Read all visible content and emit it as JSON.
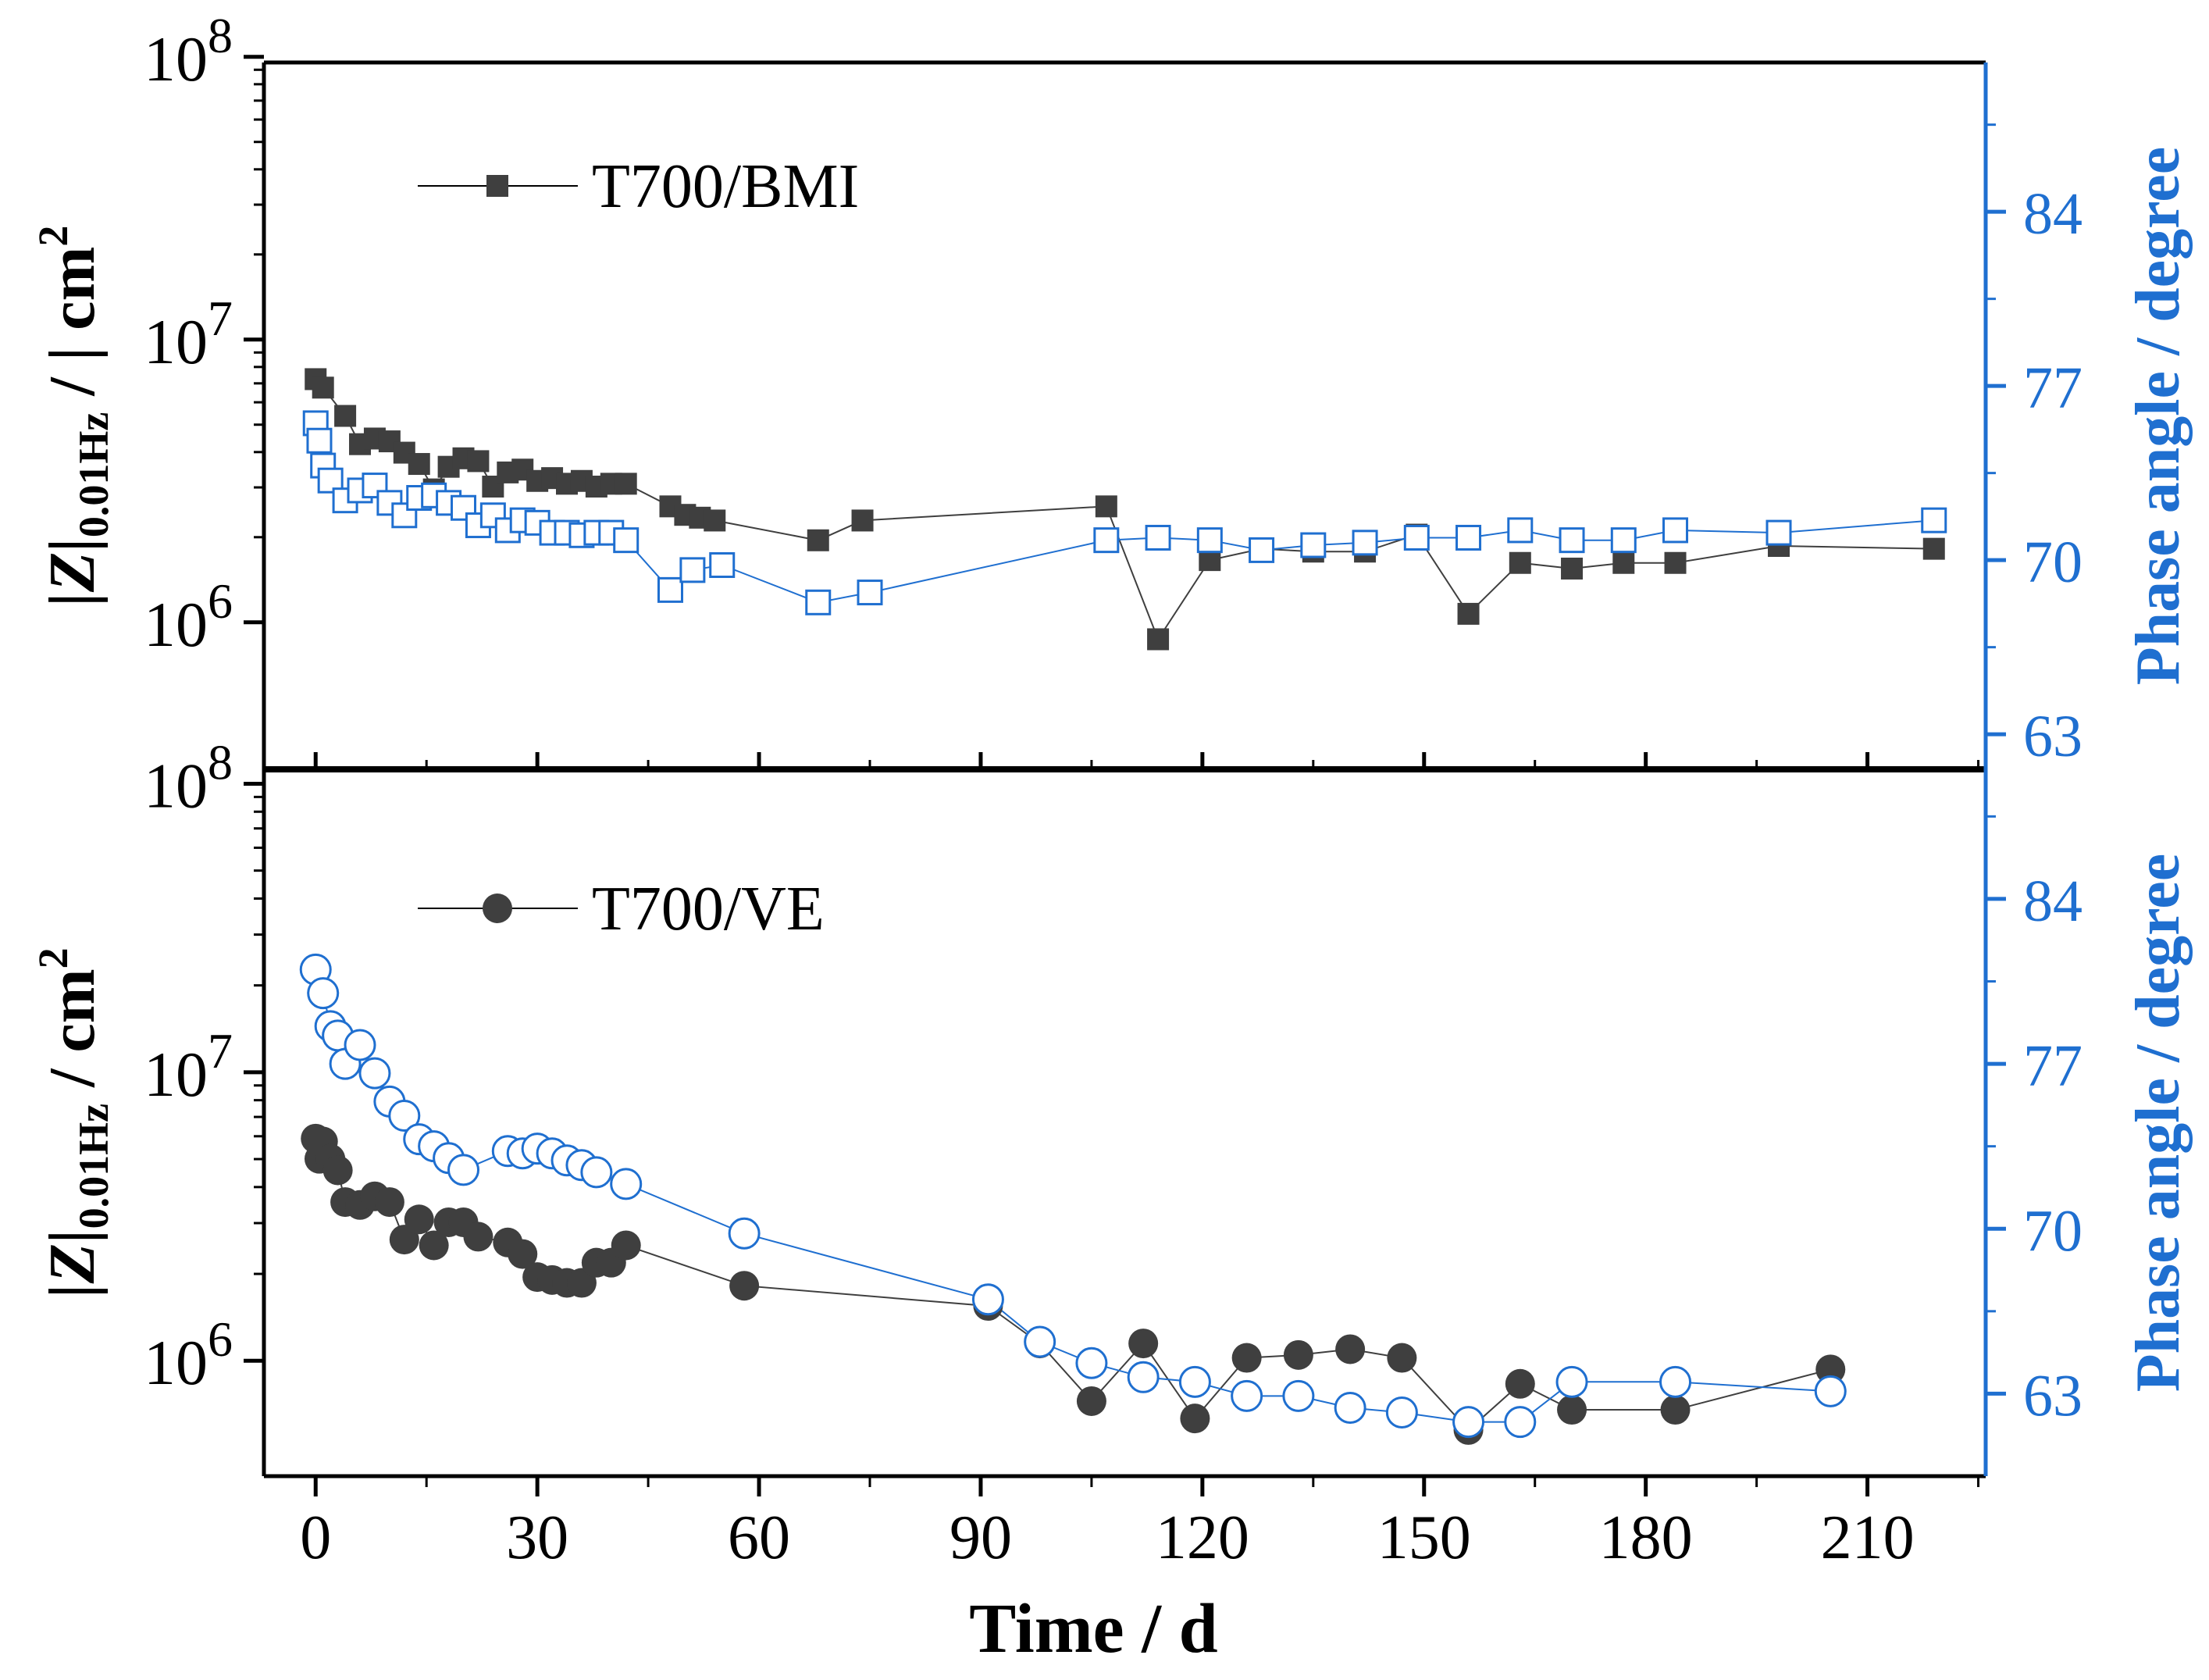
{
  "chart_data": [
    {
      "type": "scatter",
      "panel": "top",
      "left_axis_title": {
        "main": "|Z|",
        "sub": "0.01Hz",
        "tail": " /  |    cm",
        "sup": "2"
      },
      "right_axis_title": "Phase angle / degree",
      "left_ticks": [
        {
          "value": 6,
          "label": "10",
          "exp": "6"
        },
        {
          "value": 7,
          "label": "10",
          "exp": "7"
        },
        {
          "value": 8,
          "label": "10",
          "exp": "8"
        }
      ],
      "left_ylim": [
        5.48,
        7.98
      ],
      "right_ticks": [
        "63",
        "70",
        "77",
        "84"
      ],
      "right_ylim": [
        62,
        90
      ],
      "xlim": [
        -7,
        226
      ],
      "legend": {
        "label": "T700/BMI",
        "position": "top-left"
      },
      "colors": {
        "modulus": "#3f3f3f",
        "phase": "#1f6fd0"
      },
      "series": [
        {
          "name": "T700/BMI |Z|",
          "marker": "filled-square",
          "x": [
            0,
            1,
            4,
            6,
            8,
            10,
            12,
            14,
            16,
            18,
            20,
            22,
            24,
            26,
            28,
            30,
            32,
            34,
            36,
            38,
            40,
            42,
            48,
            50,
            52,
            54,
            68,
            74,
            107,
            114,
            121,
            128,
            135,
            142,
            149,
            156,
            163,
            170,
            177,
            184,
            198,
            219
          ],
          "y": [
            6.86,
            6.83,
            6.73,
            6.63,
            6.65,
            6.64,
            6.6,
            6.56,
            6.47,
            6.55,
            6.58,
            6.57,
            6.48,
            6.53,
            6.54,
            6.5,
            6.51,
            6.49,
            6.5,
            6.48,
            6.49,
            6.49,
            6.41,
            6.38,
            6.37,
            6.36,
            6.29,
            6.36,
            6.41,
            5.94,
            6.22,
            6.26,
            6.25,
            6.25,
            6.31,
            6.03,
            6.21,
            6.19,
            6.21,
            6.21,
            6.27,
            6.26
          ]
        },
        {
          "name": "T700/BMI phase",
          "marker": "open-square",
          "x": [
            0,
            0.5,
            1,
            2,
            4,
            6,
            8,
            10,
            12,
            14,
            16,
            18,
            20,
            22,
            24,
            26,
            28,
            30,
            32,
            34,
            36,
            38,
            40,
            42,
            48,
            51,
            55,
            68,
            75,
            107,
            114,
            121,
            128,
            135,
            142,
            149,
            156,
            163,
            170,
            177,
            184,
            198,
            219
          ],
          "y": [
            75.5,
            74.8,
            73.8,
            73.2,
            72.4,
            72.8,
            73,
            72.3,
            71.8,
            72.5,
            72.6,
            72.3,
            72.1,
            71.4,
            71.8,
            71.2,
            71.6,
            71.5,
            71.1,
            71.1,
            71,
            71.1,
            71.1,
            70.8,
            68.8,
            69.6,
            69.8,
            68.3,
            68.7,
            70.8,
            70.9,
            70.8,
            70.4,
            70.6,
            70.7,
            70.9,
            70.9,
            71.2,
            70.8,
            70.8,
            71.2,
            71.1,
            71.6
          ]
        }
      ]
    },
    {
      "type": "scatter",
      "panel": "bottom",
      "left_axis_title": {
        "main": "|Z|",
        "sub": "0.01Hz",
        "tail": " /      cm",
        "sup": "2"
      },
      "right_axis_title": "Phase angle / degree",
      "left_ticks": [
        {
          "value": 6,
          "label": "10",
          "exp": "6"
        },
        {
          "value": 7,
          "label": "10",
          "exp": "7"
        },
        {
          "value": 8,
          "label": "10",
          "exp": "8"
        }
      ],
      "left_ylim": [
        5.6,
        8.05
      ],
      "right_ticks": [
        "63",
        "70",
        "77",
        "84"
      ],
      "right_ylim": [
        59.5,
        89.5
      ],
      "xlim": [
        -7,
        226
      ],
      "x_ticks": [
        "0",
        "30",
        "60",
        "90",
        "120",
        "150",
        "180",
        "210"
      ],
      "xlabel": "Time / d",
      "legend": {
        "label": "T700/VE",
        "position": "top-left"
      },
      "colors": {
        "modulus": "#3f3f3f",
        "phase": "#1f6fd0"
      },
      "series": [
        {
          "name": "T700/VE |Z|",
          "marker": "filled-circle",
          "x": [
            0,
            0.5,
            1,
            2,
            3,
            4,
            6,
            8,
            10,
            12,
            14,
            16,
            18,
            20,
            22,
            26,
            28,
            30,
            32,
            34,
            36,
            38,
            40,
            42,
            58,
            91,
            98,
            105,
            112,
            119,
            126,
            133,
            140,
            147,
            156,
            163,
            170,
            184,
            205
          ],
          "y": [
            6.77,
            6.7,
            6.76,
            6.7,
            6.66,
            6.55,
            6.54,
            6.57,
            6.55,
            6.42,
            6.49,
            6.4,
            6.48,
            6.48,
            6.43,
            6.41,
            6.37,
            6.29,
            6.28,
            6.27,
            6.27,
            6.34,
            6.34,
            6.4,
            6.26,
            6.19,
            6.06,
            5.86,
            6.06,
            5.8,
            6.01,
            6.02,
            6.04,
            6.01,
            5.76,
            5.92,
            5.83,
            5.83,
            5.97
          ]
        },
        {
          "name": "T700/VE phase",
          "marker": "open-circle",
          "x": [
            0,
            1,
            2,
            3,
            4,
            6,
            8,
            10,
            12,
            14,
            16,
            18,
            20,
            26,
            28,
            30,
            32,
            34,
            36,
            38,
            42,
            58,
            91,
            98,
            105,
            112,
            119,
            126,
            133,
            140,
            147,
            156,
            163,
            170,
            184,
            205
          ],
          "y": [
            81,
            80,
            78.6,
            78.2,
            77,
            77.8,
            76.6,
            75.4,
            74.8,
            73.8,
            73.5,
            73,
            72.5,
            73.3,
            73.2,
            73.4,
            73.2,
            72.9,
            72.7,
            72.4,
            71.9,
            69.8,
            67,
            65.2,
            64.3,
            63.7,
            63.5,
            62.9,
            62.9,
            62.4,
            62.2,
            61.8,
            61.8,
            63.5,
            63.5,
            63.1
          ]
        }
      ]
    }
  ]
}
